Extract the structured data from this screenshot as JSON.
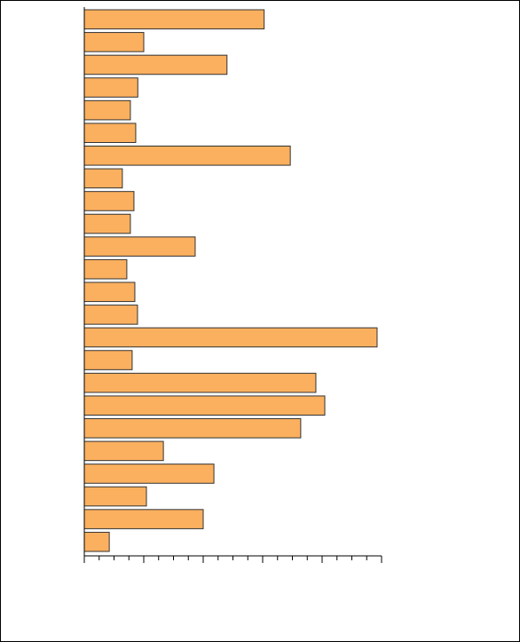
{
  "chart_data": {
    "type": "barh",
    "categories": [
      null,
      null,
      null,
      null,
      null,
      null,
      null,
      null,
      null,
      null,
      null,
      null,
      null,
      null,
      null,
      null,
      null,
      null,
      null,
      null,
      null,
      null,
      null,
      null
    ],
    "values": [
      60.5,
      20,
      48,
      18,
      15.5,
      17.3,
      69.3,
      12.8,
      16.7,
      15.5,
      37.3,
      14.3,
      17,
      17.9,
      98.5,
      16.1,
      77.9,
      80.9,
      72.8,
      26.6,
      43.6,
      20.9,
      40,
      8.4
    ],
    "color": "#fbb05f",
    "xlim": [
      0,
      100
    ],
    "xticks": [
      0,
      20,
      40,
      60,
      80,
      100
    ],
    "xminor_ticks": [
      5,
      10,
      15,
      25,
      30,
      35,
      45,
      50,
      55,
      65,
      70,
      75,
      85,
      90,
      95
    ]
  }
}
